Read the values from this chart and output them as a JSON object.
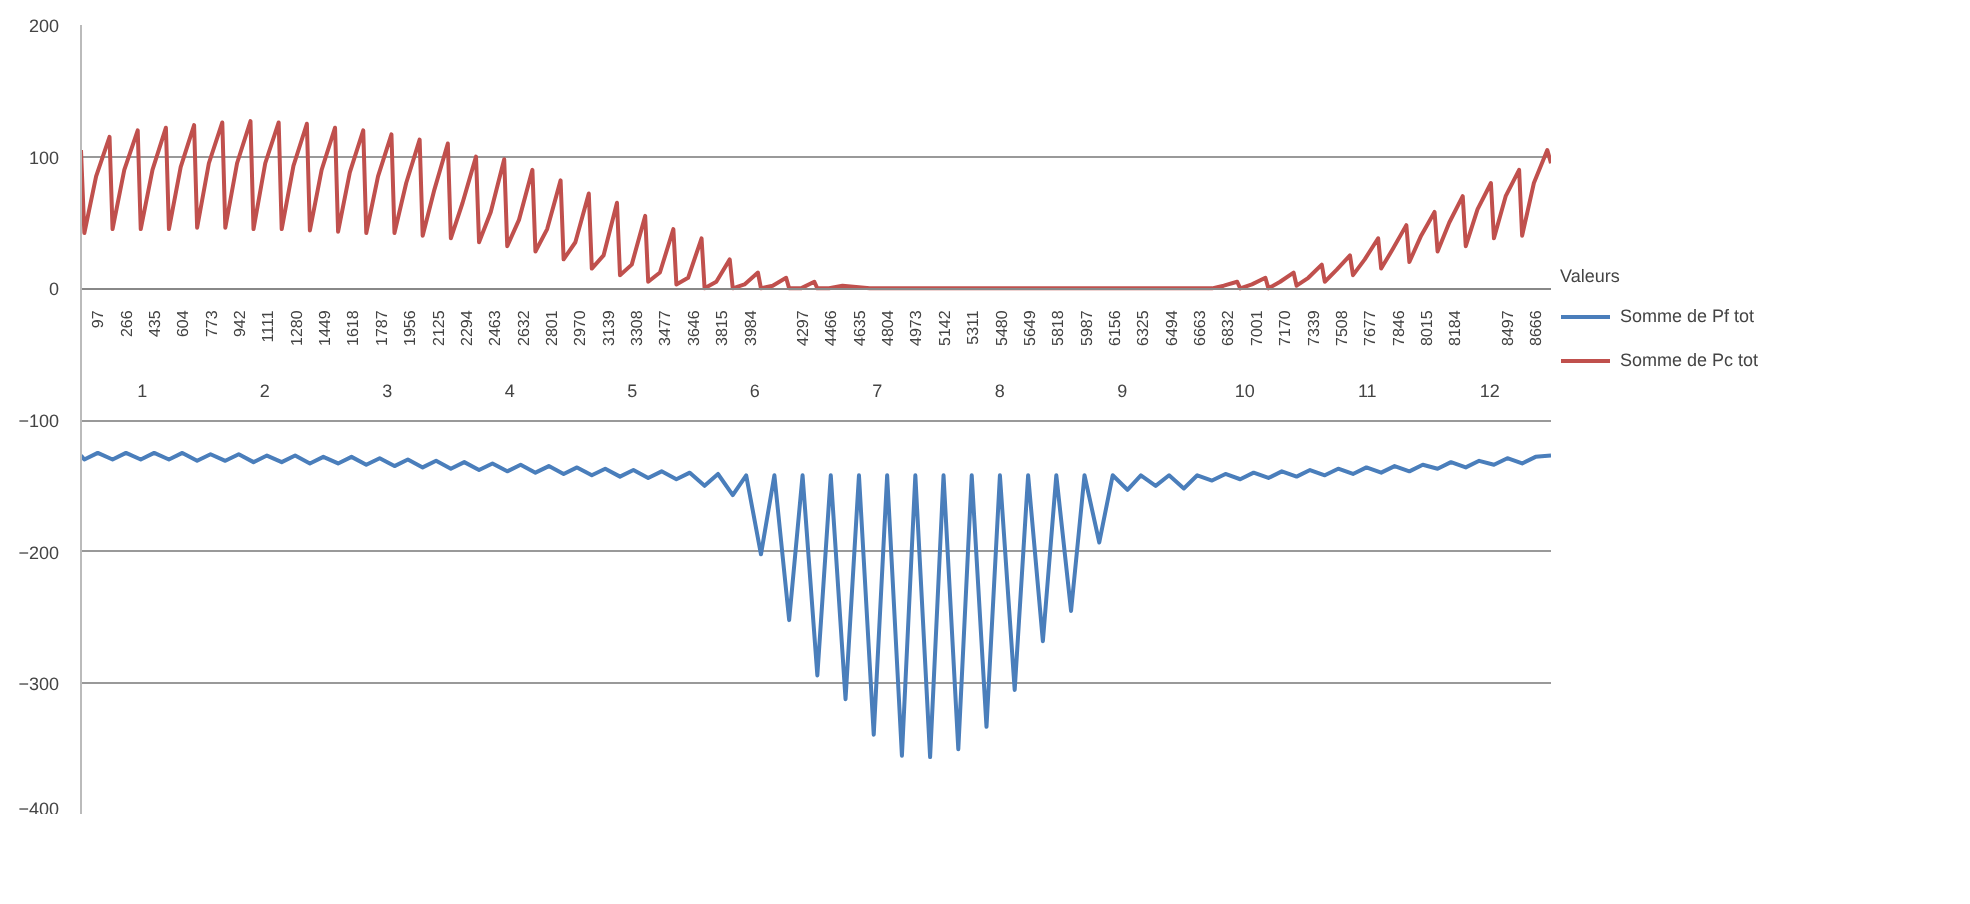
{
  "chart_data": {
    "type": "line",
    "legend_title": "Valeurs",
    "legend": "right",
    "grid": "y",
    "line_style": "solid",
    "xlim": [
      0,
      8760
    ],
    "ylim": [
      -400,
      200
    ],
    "yticks": [
      -400,
      -300,
      -200,
      -100,
      0,
      100,
      200
    ],
    "xticks": [
      97,
      266,
      435,
      604,
      773,
      942,
      1111,
      1280,
      1449,
      1618,
      1787,
      1956,
      2125,
      2294,
      2463,
      2632,
      2801,
      2970,
      3139,
      3308,
      3477,
      3646,
      3815,
      3984,
      4297,
      4466,
      4635,
      4804,
      4973,
      5142,
      5311,
      5480,
      5649,
      5818,
      5987,
      6156,
      6325,
      6494,
      6663,
      6832,
      7001,
      7170,
      7339,
      7508,
      7677,
      7846,
      8015,
      8184,
      8497,
      8666
    ],
    "annotations": [
      "1",
      "2",
      "3",
      "4",
      "5",
      "6",
      "7",
      "8",
      "9",
      "10",
      "11",
      "12"
    ],
    "series": [
      {
        "name": "Somme de Pf tot",
        "color": "#4a7ebb",
        "x": [
          0,
          20,
          100,
          188,
          268,
          356,
          436,
          524,
          604,
          692,
          772,
          860,
          940,
          1028,
          1108,
          1196,
          1276,
          1364,
          1444,
          1532,
          1612,
          1700,
          1780,
          1868,
          1948,
          2036,
          2116,
          2204,
          2284,
          2372,
          2452,
          2540,
          2620,
          2708,
          2788,
          2876,
          2956,
          3044,
          3124,
          3212,
          3292,
          3380,
          3460,
          3548,
          3628,
          3716,
          3796,
          3884,
          3964,
          4052,
          4132,
          4220,
          4300,
          4388,
          4468,
          4556,
          4636,
          4724,
          4804,
          4892,
          4972,
          5060,
          5140,
          5228,
          5308,
          5396,
          5476,
          5564,
          5644,
          5732,
          5812,
          5900,
          5980,
          6068,
          6148,
          6236,
          6316,
          6404,
          6484,
          6572,
          6652,
          6740,
          6820,
          6908,
          6988,
          7076,
          7156,
          7244,
          7324,
          7412,
          7492,
          7580,
          7660,
          7748,
          7828,
          7916,
          7996,
          8084,
          8164,
          8252,
          8332,
          8420,
          8500,
          8588,
          8668,
          8760
        ],
        "values": [
          -127,
          -130,
          -125,
          -130,
          -125,
          -130,
          -125,
          -130,
          -125,
          -131,
          -126,
          -131,
          -126,
          -132,
          -127,
          -132,
          -127,
          -133,
          -128,
          -133,
          -128,
          -134,
          -129,
          -135,
          -130,
          -136,
          -131,
          -137,
          -132,
          -138,
          -133,
          -139,
          -134,
          -140,
          -135,
          -141,
          -136,
          -142,
          -137,
          -143,
          -138,
          -144,
          -139,
          -145,
          -140,
          -150,
          -141,
          -157,
          -142,
          -202,
          -142,
          -252,
          -142,
          -294,
          -142,
          -312,
          -142,
          -339,
          -142,
          -355,
          -142,
          -356,
          -142,
          -350,
          -142,
          -333,
          -142,
          -305,
          -142,
          -268,
          -142,
          -245,
          -142,
          -193,
          -142,
          -153,
          -142,
          -150,
          -142,
          -152,
          -142,
          -146,
          -141,
          -145,
          -140,
          -144,
          -139,
          -143,
          -138,
          -142,
          -137,
          -141,
          -136,
          -140,
          -135,
          -139,
          -134,
          -137,
          -132,
          -136,
          -131,
          -134,
          -129,
          -133,
          -128,
          -127
        ]
      },
      {
        "name": "Somme de Pc tot",
        "color": "#c0504d",
        "x": [
          0,
          20,
          90,
          170,
          188,
          258,
          338,
          356,
          426,
          506,
          524,
          594,
          674,
          692,
          762,
          842,
          860,
          930,
          1010,
          1028,
          1098,
          1178,
          1196,
          1266,
          1346,
          1364,
          1434,
          1514,
          1532,
          1602,
          1682,
          1700,
          1770,
          1850,
          1868,
          1938,
          2018,
          2036,
          2106,
          2186,
          2204,
          2274,
          2354,
          2372,
          2442,
          2522,
          2540,
          2610,
          2690,
          2708,
          2778,
          2858,
          2876,
          2946,
          3026,
          3044,
          3114,
          3194,
          3212,
          3282,
          3362,
          3380,
          3450,
          3530,
          3548,
          3618,
          3698,
          3716,
          3786,
          3866,
          3884,
          3954,
          4034,
          4052,
          4122,
          4202,
          4220,
          4290,
          4370,
          4388,
          4458,
          4538,
          4700,
          6700,
          6740,
          6810,
          6890,
          6908,
          6978,
          7058,
          7076,
          7146,
          7226,
          7244,
          7314,
          7394,
          7412,
          7482,
          7562,
          7580,
          7650,
          7730,
          7748,
          7818,
          7898,
          7916,
          7986,
          8066,
          8084,
          8154,
          8234,
          8252,
          8322,
          8402,
          8420,
          8490,
          8570,
          8588,
          8658,
          8738,
          8760
        ],
        "values": [
          105,
          42,
          85,
          115,
          45,
          90,
          120,
          45,
          90,
          122,
          45,
          92,
          124,
          46,
          95,
          126,
          46,
          95,
          127,
          45,
          95,
          126,
          45,
          93,
          125,
          44,
          90,
          122,
          43,
          88,
          120,
          42,
          85,
          117,
          42,
          80,
          113,
          40,
          75,
          110,
          38,
          65,
          100,
          35,
          58,
          98,
          32,
          52,
          90,
          28,
          45,
          82,
          22,
          35,
          72,
          15,
          25,
          65,
          10,
          18,
          55,
          5,
          12,
          45,
          3,
          8,
          38,
          0,
          5,
          22,
          0,
          3,
          12,
          0,
          2,
          8,
          0,
          0,
          5,
          0,
          0,
          2,
          0,
          0,
          0,
          2,
          5,
          0,
          3,
          8,
          0,
          5,
          12,
          2,
          8,
          18,
          5,
          14,
          25,
          10,
          22,
          38,
          15,
          30,
          48,
          20,
          40,
          58,
          28,
          50,
          70,
          32,
          60,
          80,
          38,
          70,
          90,
          40,
          80,
          105,
          95
        ]
      }
    ]
  }
}
